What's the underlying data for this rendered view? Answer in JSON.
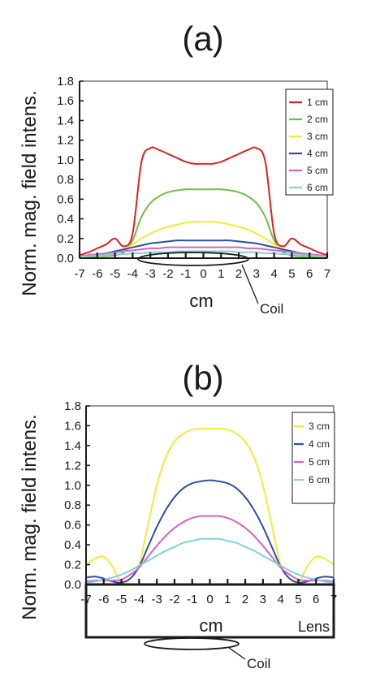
{
  "colors": {
    "axis": "#1a1a1a",
    "red": "#e02020",
    "green": "#6cc04a",
    "yellow": "#f2ea3a",
    "blue": "#2d4fa8",
    "magenta": "#d264c8",
    "cyan": "#7fd3d3"
  },
  "chart_data": [
    {
      "panel_label": "(a)",
      "type": "line",
      "xlabel": "cm",
      "ylabel": "Norm. mag. field intens.",
      "xlim": [
        -7,
        7
      ],
      "ylim": [
        0,
        1.8
      ],
      "xticks": [
        -7,
        -6,
        -5,
        -4,
        -3,
        -2,
        -1,
        0,
        1,
        2,
        3,
        4,
        5,
        6,
        7
      ],
      "yticks": [
        "0.0",
        "0.2",
        "0.4",
        "0.6",
        "0.8",
        "1.0",
        "1.2",
        "1.4",
        "1.6",
        "1.8"
      ],
      "legend_position": "top-right",
      "annotations": [
        "Coil"
      ],
      "x": [
        -7,
        -6.5,
        -6,
        -5.5,
        -5,
        -4.5,
        -4,
        -3.5,
        -3,
        -2.5,
        -2,
        -1.5,
        -1,
        -0.5,
        0,
        0.5,
        1,
        1.5,
        2,
        2.5,
        3,
        3.5,
        4,
        4.5,
        5,
        5.5,
        6,
        6.5,
        7
      ],
      "series": [
        {
          "name": "1 cm",
          "color": "#e02020",
          "values": [
            0.03,
            0.06,
            0.1,
            0.14,
            0.2,
            0.12,
            0.25,
            0.98,
            1.12,
            1.1,
            1.06,
            1.02,
            0.98,
            0.96,
            0.96,
            0.96,
            0.98,
            1.02,
            1.06,
            1.1,
            1.12,
            0.98,
            0.25,
            0.12,
            0.2,
            0.14,
            0.1,
            0.06,
            0.03
          ]
        },
        {
          "name": "2 cm",
          "color": "#6cc04a",
          "values": [
            0.01,
            0.01,
            0.02,
            0.02,
            0.03,
            0.06,
            0.18,
            0.42,
            0.56,
            0.63,
            0.67,
            0.69,
            0.7,
            0.7,
            0.7,
            0.7,
            0.7,
            0.69,
            0.67,
            0.63,
            0.56,
            0.42,
            0.18,
            0.06,
            0.03,
            0.02,
            0.02,
            0.01,
            0.01
          ]
        },
        {
          "name": "3 cm",
          "color": "#f2ea3a",
          "values": [
            0.01,
            0.02,
            0.03,
            0.04,
            0.06,
            0.09,
            0.14,
            0.2,
            0.25,
            0.29,
            0.32,
            0.34,
            0.36,
            0.37,
            0.37,
            0.37,
            0.36,
            0.34,
            0.32,
            0.29,
            0.25,
            0.2,
            0.14,
            0.09,
            0.06,
            0.04,
            0.03,
            0.02,
            0.01
          ]
        },
        {
          "name": "4 cm",
          "color": "#2d4fa8",
          "values": [
            0.02,
            0.03,
            0.04,
            0.05,
            0.07,
            0.09,
            0.11,
            0.13,
            0.15,
            0.16,
            0.17,
            0.18,
            0.18,
            0.18,
            0.18,
            0.18,
            0.18,
            0.18,
            0.17,
            0.16,
            0.15,
            0.13,
            0.11,
            0.09,
            0.07,
            0.05,
            0.04,
            0.03,
            0.02
          ]
        },
        {
          "name": "5 cm",
          "color": "#d264c8",
          "values": [
            0.02,
            0.03,
            0.04,
            0.05,
            0.06,
            0.07,
            0.08,
            0.09,
            0.1,
            0.1,
            0.11,
            0.11,
            0.11,
            0.11,
            0.11,
            0.11,
            0.11,
            0.11,
            0.11,
            0.1,
            0.1,
            0.09,
            0.08,
            0.07,
            0.06,
            0.05,
            0.04,
            0.03,
            0.02
          ]
        },
        {
          "name": "6 cm",
          "color": "#7fd3d3",
          "values": [
            0.02,
            0.02,
            0.03,
            0.03,
            0.04,
            0.04,
            0.05,
            0.05,
            0.06,
            0.06,
            0.06,
            0.07,
            0.07,
            0.07,
            0.07,
            0.07,
            0.07,
            0.07,
            0.06,
            0.06,
            0.06,
            0.05,
            0.05,
            0.04,
            0.04,
            0.03,
            0.03,
            0.02,
            0.02
          ]
        }
      ]
    },
    {
      "panel_label": "(b)",
      "type": "line",
      "xlabel": "cm",
      "ylabel": "Norm. mag. field intens.",
      "xlim": [
        -7,
        7
      ],
      "ylim": [
        0,
        1.8
      ],
      "xticks": [
        -7,
        -6,
        -5,
        -4,
        -3,
        -2,
        -1,
        0,
        1,
        2,
        3,
        4,
        5,
        6,
        7
      ],
      "yticks": [
        "0.0",
        "0.2",
        "0.4",
        "0.6",
        "0.8",
        "1.0",
        "1.2",
        "1.4",
        "1.6",
        "1.8"
      ],
      "legend_position": "top-right",
      "annotations": [
        "Lens",
        "Coil"
      ],
      "x": [
        -7,
        -6.5,
        -6,
        -5.5,
        -5,
        -4.5,
        -4,
        -3.5,
        -3,
        -2.5,
        -2,
        -1.5,
        -1,
        -0.5,
        0,
        0.5,
        1,
        1.5,
        2,
        2.5,
        3,
        3.5,
        4,
        4.5,
        5,
        5.5,
        6,
        6.5,
        7
      ],
      "series": [
        {
          "name": "3 cm",
          "color": "#f2ea3a",
          "values": [
            0.2,
            0.26,
            0.28,
            0.18,
            0.02,
            0.06,
            0.2,
            0.6,
            1.0,
            1.28,
            1.44,
            1.52,
            1.56,
            1.57,
            1.57,
            1.57,
            1.56,
            1.52,
            1.44,
            1.28,
            1.0,
            0.6,
            0.2,
            0.06,
            0.02,
            0.18,
            0.28,
            0.26,
            0.2
          ]
        },
        {
          "name": "4 cm",
          "color": "#2d4fa8",
          "values": [
            0.07,
            0.08,
            0.06,
            0.03,
            0.02,
            0.06,
            0.18,
            0.38,
            0.58,
            0.75,
            0.88,
            0.97,
            1.02,
            1.04,
            1.05,
            1.04,
            1.02,
            0.97,
            0.88,
            0.75,
            0.58,
            0.38,
            0.18,
            0.06,
            0.02,
            0.03,
            0.06,
            0.08,
            0.07
          ]
        },
        {
          "name": "5 cm",
          "color": "#d264c8",
          "values": [
            0.03,
            0.04,
            0.04,
            0.04,
            0.05,
            0.1,
            0.17,
            0.28,
            0.39,
            0.49,
            0.57,
            0.63,
            0.67,
            0.69,
            0.69,
            0.69,
            0.67,
            0.63,
            0.57,
            0.49,
            0.39,
            0.28,
            0.17,
            0.1,
            0.05,
            0.04,
            0.04,
            0.04,
            0.03
          ]
        },
        {
          "name": "6 cm",
          "color": "#7fd3d3",
          "values": [
            0.02,
            0.03,
            0.05,
            0.07,
            0.1,
            0.14,
            0.19,
            0.24,
            0.29,
            0.34,
            0.38,
            0.42,
            0.44,
            0.46,
            0.46,
            0.46,
            0.44,
            0.42,
            0.38,
            0.34,
            0.29,
            0.24,
            0.19,
            0.14,
            0.1,
            0.07,
            0.05,
            0.03,
            0.02
          ]
        }
      ]
    }
  ]
}
